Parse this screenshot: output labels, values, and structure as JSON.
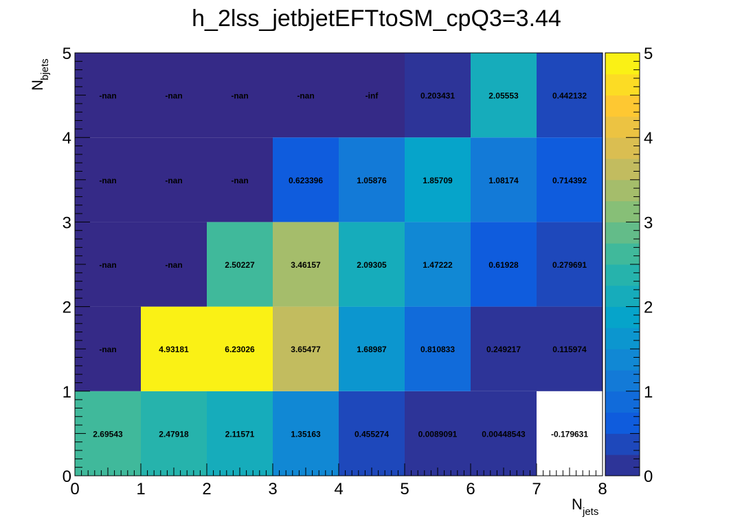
{
  "chart_data": {
    "type": "heatmap",
    "title": "h_2lss_jetbjetEFTtoSM_cpQ3=3.44",
    "xlabel": {
      "main": "N",
      "sub": "jets"
    },
    "ylabel": {
      "main": "N",
      "sub": "bjets"
    },
    "x_edges": [
      0,
      1,
      2,
      3,
      4,
      5,
      6,
      7,
      8
    ],
    "y_edges": [
      0,
      1,
      2,
      3,
      4,
      5
    ],
    "xlim": [
      0,
      8
    ],
    "ylim": [
      0,
      5
    ],
    "zlim": [
      0,
      5
    ],
    "x_ticks": [
      "0",
      "1",
      "2",
      "3",
      "4",
      "5",
      "6",
      "7",
      "8"
    ],
    "y_ticks": [
      "0",
      "1",
      "2",
      "3",
      "4",
      "5"
    ],
    "z_ticks": [
      "0",
      "1",
      "2",
      "3",
      "4",
      "5"
    ],
    "colormap": "parula",
    "colormap_colors": [
      "#352a87",
      "#0f5cdd",
      "#1481d6",
      "#06a4ca",
      "#2eb7a4",
      "#87bf77",
      "#d1bb59",
      "#fec832",
      "#f9fb0e"
    ],
    "grid": false,
    "cells": [
      {
        "x": 0,
        "y": 0,
        "value": 2.69543,
        "label": "2.69543"
      },
      {
        "x": 1,
        "y": 0,
        "value": 2.47918,
        "label": "2.47918"
      },
      {
        "x": 2,
        "y": 0,
        "value": 2.11571,
        "label": "2.11571"
      },
      {
        "x": 3,
        "y": 0,
        "value": 1.35163,
        "label": "1.35163"
      },
      {
        "x": 4,
        "y": 0,
        "value": 0.455274,
        "label": "0.455274"
      },
      {
        "x": 5,
        "y": 0,
        "value": 0.0089091,
        "label": "0.0089091"
      },
      {
        "x": 6,
        "y": 0,
        "value": 0.00448543,
        "label": "0.00448543"
      },
      {
        "x": 7,
        "y": 0,
        "value": -0.179631,
        "label": "-0.179631"
      },
      {
        "x": 0,
        "y": 1,
        "value": null,
        "label": "-nan"
      },
      {
        "x": 1,
        "y": 1,
        "value": 4.93181,
        "label": "4.93181"
      },
      {
        "x": 2,
        "y": 1,
        "value": 6.23026,
        "label": "6.23026"
      },
      {
        "x": 3,
        "y": 1,
        "value": 3.65477,
        "label": "3.65477"
      },
      {
        "x": 4,
        "y": 1,
        "value": 1.68987,
        "label": "1.68987"
      },
      {
        "x": 5,
        "y": 1,
        "value": 0.810833,
        "label": "0.810833"
      },
      {
        "x": 6,
        "y": 1,
        "value": 0.249217,
        "label": "0.249217"
      },
      {
        "x": 7,
        "y": 1,
        "value": 0.115974,
        "label": "0.115974"
      },
      {
        "x": 0,
        "y": 2,
        "value": null,
        "label": "-nan"
      },
      {
        "x": 1,
        "y": 2,
        "value": null,
        "label": "-nan"
      },
      {
        "x": 2,
        "y": 2,
        "value": 2.50227,
        "label": "2.50227"
      },
      {
        "x": 3,
        "y": 2,
        "value": 3.46157,
        "label": "3.46157"
      },
      {
        "x": 4,
        "y": 2,
        "value": 2.09305,
        "label": "2.09305"
      },
      {
        "x": 5,
        "y": 2,
        "value": 1.47222,
        "label": "1.47222"
      },
      {
        "x": 6,
        "y": 2,
        "value": 0.61928,
        "label": "0.61928"
      },
      {
        "x": 7,
        "y": 2,
        "value": 0.279691,
        "label": "0.279691"
      },
      {
        "x": 0,
        "y": 3,
        "value": null,
        "label": "-nan"
      },
      {
        "x": 1,
        "y": 3,
        "value": null,
        "label": "-nan"
      },
      {
        "x": 2,
        "y": 3,
        "value": null,
        "label": "-nan"
      },
      {
        "x": 3,
        "y": 3,
        "value": 0.623396,
        "label": "0.623396"
      },
      {
        "x": 4,
        "y": 3,
        "value": 1.05876,
        "label": "1.05876"
      },
      {
        "x": 5,
        "y": 3,
        "value": 1.85709,
        "label": "1.85709"
      },
      {
        "x": 6,
        "y": 3,
        "value": 1.08174,
        "label": "1.08174"
      },
      {
        "x": 7,
        "y": 3,
        "value": 0.714392,
        "label": "0.714392"
      },
      {
        "x": 0,
        "y": 4,
        "value": null,
        "label": "-nan"
      },
      {
        "x": 1,
        "y": 4,
        "value": null,
        "label": "-nan"
      },
      {
        "x": 2,
        "y": 4,
        "value": null,
        "label": "-nan"
      },
      {
        "x": 3,
        "y": 4,
        "value": null,
        "label": "-nan"
      },
      {
        "x": 4,
        "y": 4,
        "value": null,
        "label": "-inf"
      },
      {
        "x": 5,
        "y": 4,
        "value": 0.203431,
        "label": "0.203431"
      },
      {
        "x": 6,
        "y": 4,
        "value": 2.05553,
        "label": "2.05553"
      },
      {
        "x": 7,
        "y": 4,
        "value": 0.442132,
        "label": "0.442132"
      }
    ]
  }
}
